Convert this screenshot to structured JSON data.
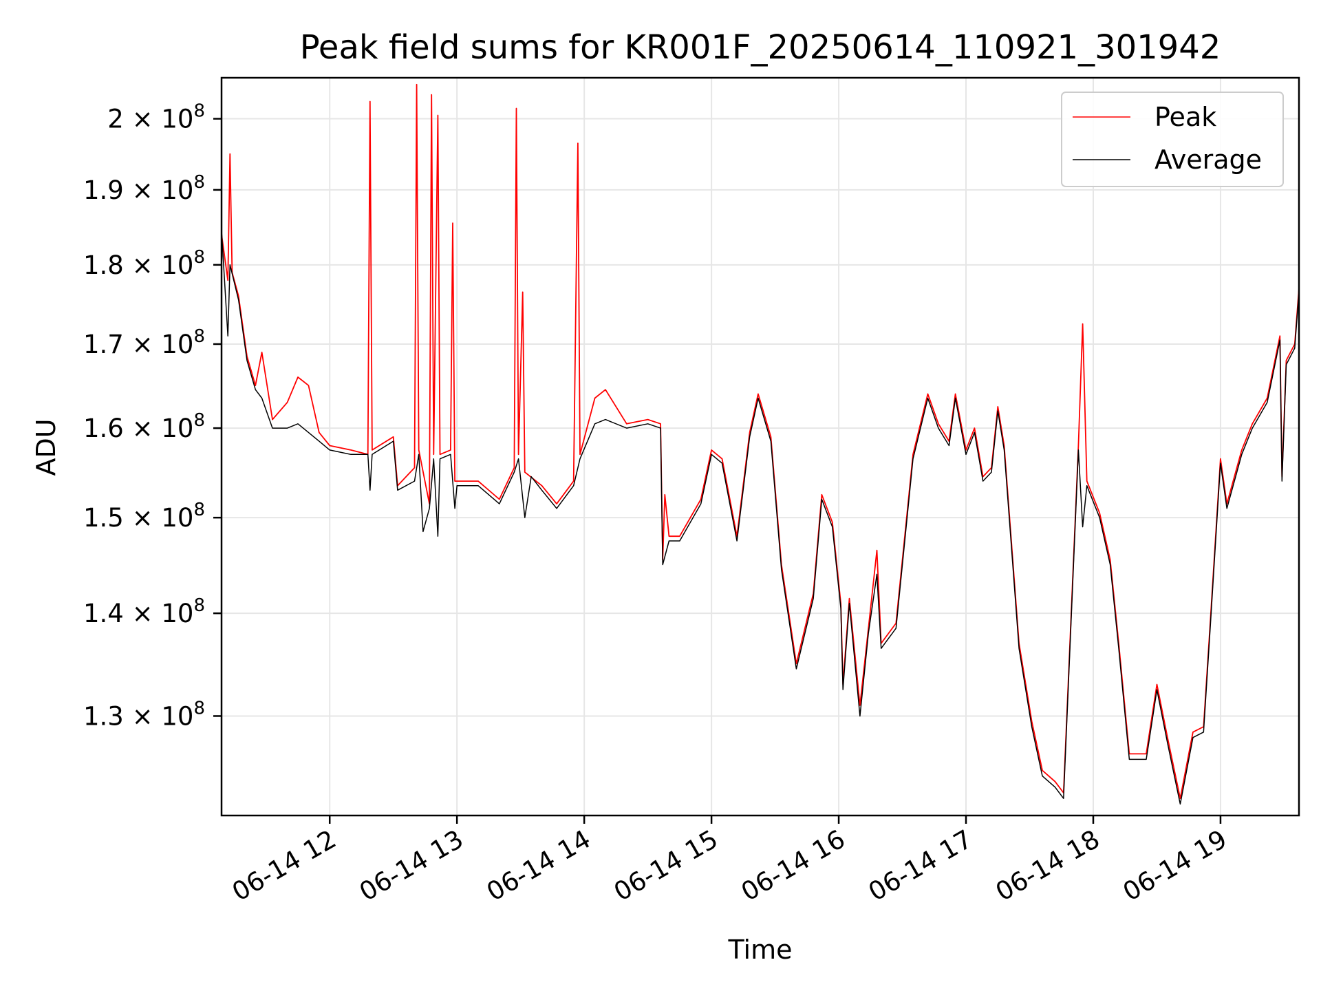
{
  "chart_data": {
    "type": "line",
    "title": "Peak field sums for KR001F_20250614_110921_301942",
    "xlabel": "Time",
    "ylabel": "ADU",
    "x_type": "datetime",
    "xlim": [
      "2025-06-14 11:09",
      "2025-06-14 19:37"
    ],
    "ylim": [
      121000000,
      206000000
    ],
    "y_scale": "log",
    "grid": true,
    "legend_position": "top-right",
    "x_ticks": [
      {
        "value": "2025-06-14 12:00",
        "label": "06-14 12"
      },
      {
        "value": "2025-06-14 13:00",
        "label": "06-14 13"
      },
      {
        "value": "2025-06-14 14:00",
        "label": "06-14 14"
      },
      {
        "value": "2025-06-14 15:00",
        "label": "06-14 15"
      },
      {
        "value": "2025-06-14 16:00",
        "label": "06-14 16"
      },
      {
        "value": "2025-06-14 17:00",
        "label": "06-14 17"
      },
      {
        "value": "2025-06-14 18:00",
        "label": "06-14 18"
      },
      {
        "value": "2025-06-14 19:00",
        "label": "06-14 19"
      }
    ],
    "y_ticks": [
      {
        "value": 130000000,
        "mantissa": "1.3",
        "exponent": "8"
      },
      {
        "value": 140000000,
        "mantissa": "1.4",
        "exponent": "8"
      },
      {
        "value": 150000000,
        "mantissa": "1.5",
        "exponent": "8"
      },
      {
        "value": 160000000,
        "mantissa": "1.6",
        "exponent": "8"
      },
      {
        "value": 170000000,
        "mantissa": "1.7",
        "exponent": "8"
      },
      {
        "value": 180000000,
        "mantissa": "1.8",
        "exponent": "8"
      },
      {
        "value": 190000000,
        "mantissa": "1.9",
        "exponent": "8"
      },
      {
        "value": 200000000,
        "mantissa": "2",
        "exponent": "8"
      }
    ],
    "series": [
      {
        "name": "Peak",
        "color": "#ff0000",
        "points": [
          [
            "2025-06-14 11:09",
            184000000
          ],
          [
            "2025-06-14 11:12",
            178000000
          ],
          [
            "2025-06-14 11:13",
            195000000
          ],
          [
            "2025-06-14 11:14",
            179000000
          ],
          [
            "2025-06-14 11:17",
            176000000
          ],
          [
            "2025-06-14 11:21",
            168500000
          ],
          [
            "2025-06-14 11:25",
            165000000
          ],
          [
            "2025-06-14 11:28",
            169000000
          ],
          [
            "2025-06-14 11:33",
            161000000
          ],
          [
            "2025-06-14 11:40",
            163000000
          ],
          [
            "2025-06-14 11:45",
            166000000
          ],
          [
            "2025-06-14 11:50",
            165000000
          ],
          [
            "2025-06-14 11:55",
            159500000
          ],
          [
            "2025-06-14 12:00",
            158000000
          ],
          [
            "2025-06-14 12:10",
            157500000
          ],
          [
            "2025-06-14 12:18",
            157000000
          ],
          [
            "2025-06-14 12:19",
            202500000
          ],
          [
            "2025-06-14 12:20",
            157500000
          ],
          [
            "2025-06-14 12:30",
            159000000
          ],
          [
            "2025-06-14 12:32",
            153500000
          ],
          [
            "2025-06-14 12:40",
            155500000
          ],
          [
            "2025-06-14 12:41",
            205000000
          ],
          [
            "2025-06-14 12:42",
            157500000
          ],
          [
            "2025-06-14 12:47",
            151500000
          ],
          [
            "2025-06-14 12:48",
            203500000
          ],
          [
            "2025-06-14 12:49",
            157000000
          ],
          [
            "2025-06-14 12:51",
            200500000
          ],
          [
            "2025-06-14 12:52",
            157000000
          ],
          [
            "2025-06-14 12:57",
            157500000
          ],
          [
            "2025-06-14 12:58",
            185500000
          ],
          [
            "2025-06-14 12:59",
            154000000
          ],
          [
            "2025-06-14 13:10",
            154000000
          ],
          [
            "2025-06-14 13:20",
            152000000
          ],
          [
            "2025-06-14 13:27",
            155500000
          ],
          [
            "2025-06-14 13:28",
            201500000
          ],
          [
            "2025-06-14 13:29",
            157000000
          ],
          [
            "2025-06-14 13:31",
            176500000
          ],
          [
            "2025-06-14 13:32",
            155000000
          ],
          [
            "2025-06-14 13:40",
            153500000
          ],
          [
            "2025-06-14 13:47",
            151500000
          ],
          [
            "2025-06-14 13:55",
            154000000
          ],
          [
            "2025-06-14 13:57",
            196500000
          ],
          [
            "2025-06-14 13:58",
            157000000
          ],
          [
            "2025-06-14 14:05",
            163500000
          ],
          [
            "2025-06-14 14:10",
            164500000
          ],
          [
            "2025-06-14 14:20",
            160500000
          ],
          [
            "2025-06-14 14:30",
            161000000
          ],
          [
            "2025-06-14 14:36",
            160500000
          ],
          [
            "2025-06-14 14:37",
            145500000
          ],
          [
            "2025-06-14 14:38",
            152500000
          ],
          [
            "2025-06-14 14:40",
            148000000
          ],
          [
            "2025-06-14 14:45",
            148000000
          ],
          [
            "2025-06-14 14:55",
            152000000
          ],
          [
            "2025-06-14 15:00",
            157500000
          ],
          [
            "2025-06-14 15:05",
            156500000
          ],
          [
            "2025-06-14 15:12",
            148000000
          ],
          [
            "2025-06-14 15:18",
            159500000
          ],
          [
            "2025-06-14 15:22",
            164000000
          ],
          [
            "2025-06-14 15:28",
            159000000
          ],
          [
            "2025-06-14 15:33",
            145000000
          ],
          [
            "2025-06-14 15:40",
            135000000
          ],
          [
            "2025-06-14 15:48",
            142000000
          ],
          [
            "2025-06-14 15:52",
            152500000
          ],
          [
            "2025-06-14 15:57",
            149500000
          ],
          [
            "2025-06-14 16:01",
            141000000
          ],
          [
            "2025-06-14 16:02",
            133000000
          ],
          [
            "2025-06-14 16:05",
            141500000
          ],
          [
            "2025-06-14 16:10",
            131000000
          ],
          [
            "2025-06-14 16:14",
            138500000
          ],
          [
            "2025-06-14 16:18",
            146500000
          ],
          [
            "2025-06-14 16:20",
            137000000
          ],
          [
            "2025-06-14 16:27",
            139000000
          ],
          [
            "2025-06-14 16:35",
            157000000
          ],
          [
            "2025-06-14 16:42",
            164000000
          ],
          [
            "2025-06-14 16:47",
            160500000
          ],
          [
            "2025-06-14 16:52",
            158500000
          ],
          [
            "2025-06-14 16:55",
            164000000
          ],
          [
            "2025-06-14 17:00",
            157500000
          ],
          [
            "2025-06-14 17:04",
            160000000
          ],
          [
            "2025-06-14 17:08",
            154500000
          ],
          [
            "2025-06-14 17:12",
            155500000
          ],
          [
            "2025-06-14 17:15",
            162500000
          ],
          [
            "2025-06-14 17:18",
            158000000
          ],
          [
            "2025-06-14 17:25",
            137000000
          ],
          [
            "2025-06-14 17:31",
            129500000
          ],
          [
            "2025-06-14 17:36",
            125000000
          ],
          [
            "2025-06-14 17:42",
            124000000
          ],
          [
            "2025-06-14 17:46",
            123000000
          ],
          [
            "2025-06-14 17:53",
            158000000
          ],
          [
            "2025-06-14 17:55",
            172500000
          ],
          [
            "2025-06-14 17:57",
            154000000
          ],
          [
            "2025-06-14 18:03",
            150500000
          ],
          [
            "2025-06-14 18:08",
            145500000
          ],
          [
            "2025-06-14 18:12",
            137000000
          ],
          [
            "2025-06-14 18:17",
            126500000
          ],
          [
            "2025-06-14 18:25",
            126500000
          ],
          [
            "2025-06-14 18:30",
            133000000
          ],
          [
            "2025-06-14 18:35",
            128000000
          ],
          [
            "2025-06-14 18:41",
            122500000
          ],
          [
            "2025-06-14 18:47",
            128500000
          ],
          [
            "2025-06-14 18:52",
            129000000
          ],
          [
            "2025-06-14 18:55",
            138500000
          ],
          [
            "2025-06-14 19:00",
            156500000
          ],
          [
            "2025-06-14 19:03",
            151500000
          ],
          [
            "2025-06-14 19:10",
            157500000
          ],
          [
            "2025-06-14 19:15",
            160500000
          ],
          [
            "2025-06-14 19:22",
            163500000
          ],
          [
            "2025-06-14 19:28",
            171000000
          ],
          [
            "2025-06-14 19:29",
            154500000
          ],
          [
            "2025-06-14 19:31",
            168000000
          ],
          [
            "2025-06-14 19:35",
            170000000
          ],
          [
            "2025-06-14 19:37",
            177000000
          ]
        ]
      },
      {
        "name": "Average",
        "color": "#000000",
        "points": [
          [
            "2025-06-14 11:09",
            184500000
          ],
          [
            "2025-06-14 11:12",
            171000000
          ],
          [
            "2025-06-14 11:13",
            180000000
          ],
          [
            "2025-06-14 11:17",
            175500000
          ],
          [
            "2025-06-14 11:21",
            168000000
          ],
          [
            "2025-06-14 11:25",
            164500000
          ],
          [
            "2025-06-14 11:28",
            163500000
          ],
          [
            "2025-06-14 11:33",
            160000000
          ],
          [
            "2025-06-14 11:40",
            160000000
          ],
          [
            "2025-06-14 11:45",
            160500000
          ],
          [
            "2025-06-14 11:50",
            159500000
          ],
          [
            "2025-06-14 11:55",
            158500000
          ],
          [
            "2025-06-14 12:00",
            157500000
          ],
          [
            "2025-06-14 12:10",
            157000000
          ],
          [
            "2025-06-14 12:18",
            157000000
          ],
          [
            "2025-06-14 12:19",
            153000000
          ],
          [
            "2025-06-14 12:20",
            157000000
          ],
          [
            "2025-06-14 12:30",
            158500000
          ],
          [
            "2025-06-14 12:32",
            153000000
          ],
          [
            "2025-06-14 12:40",
            154000000
          ],
          [
            "2025-06-14 12:42",
            157000000
          ],
          [
            "2025-06-14 12:44",
            148500000
          ],
          [
            "2025-06-14 12:47",
            151000000
          ],
          [
            "2025-06-14 12:49",
            156500000
          ],
          [
            "2025-06-14 12:51",
            148000000
          ],
          [
            "2025-06-14 12:52",
            156500000
          ],
          [
            "2025-06-14 12:57",
            157000000
          ],
          [
            "2025-06-14 12:59",
            151000000
          ],
          [
            "2025-06-14 13:00",
            153500000
          ],
          [
            "2025-06-14 13:10",
            153500000
          ],
          [
            "2025-06-14 13:20",
            151500000
          ],
          [
            "2025-06-14 13:27",
            155000000
          ],
          [
            "2025-06-14 13:29",
            156500000
          ],
          [
            "2025-06-14 13:32",
            150000000
          ],
          [
            "2025-06-14 13:35",
            154500000
          ],
          [
            "2025-06-14 13:40",
            153000000
          ],
          [
            "2025-06-14 13:47",
            151000000
          ],
          [
            "2025-06-14 13:55",
            153500000
          ],
          [
            "2025-06-14 13:58",
            156500000
          ],
          [
            "2025-06-14 14:05",
            160500000
          ],
          [
            "2025-06-14 14:10",
            161000000
          ],
          [
            "2025-06-14 14:20",
            160000000
          ],
          [
            "2025-06-14 14:30",
            160500000
          ],
          [
            "2025-06-14 14:36",
            160000000
          ],
          [
            "2025-06-14 14:37",
            145000000
          ],
          [
            "2025-06-14 14:40",
            147500000
          ],
          [
            "2025-06-14 14:45",
            147500000
          ],
          [
            "2025-06-14 14:55",
            151500000
          ],
          [
            "2025-06-14 15:00",
            157000000
          ],
          [
            "2025-06-14 15:05",
            156000000
          ],
          [
            "2025-06-14 15:12",
            147500000
          ],
          [
            "2025-06-14 15:18",
            159000000
          ],
          [
            "2025-06-14 15:22",
            163500000
          ],
          [
            "2025-06-14 15:28",
            158500000
          ],
          [
            "2025-06-14 15:33",
            144500000
          ],
          [
            "2025-06-14 15:40",
            134500000
          ],
          [
            "2025-06-14 15:48",
            141500000
          ],
          [
            "2025-06-14 15:52",
            152000000
          ],
          [
            "2025-06-14 15:57",
            149000000
          ],
          [
            "2025-06-14 16:01",
            140500000
          ],
          [
            "2025-06-14 16:02",
            132500000
          ],
          [
            "2025-06-14 16:05",
            141000000
          ],
          [
            "2025-06-14 16:10",
            130000000
          ],
          [
            "2025-06-14 16:14",
            138000000
          ],
          [
            "2025-06-14 16:18",
            144000000
          ],
          [
            "2025-06-14 16:20",
            136500000
          ],
          [
            "2025-06-14 16:27",
            138500000
          ],
          [
            "2025-06-14 16:35",
            156500000
          ],
          [
            "2025-06-14 16:42",
            163500000
          ],
          [
            "2025-06-14 16:47",
            160000000
          ],
          [
            "2025-06-14 16:52",
            158000000
          ],
          [
            "2025-06-14 16:55",
            163500000
          ],
          [
            "2025-06-14 17:00",
            157000000
          ],
          [
            "2025-06-14 17:04",
            159500000
          ],
          [
            "2025-06-14 17:08",
            154000000
          ],
          [
            "2025-06-14 17:12",
            155000000
          ],
          [
            "2025-06-14 17:15",
            162000000
          ],
          [
            "2025-06-14 17:18",
            157500000
          ],
          [
            "2025-06-14 17:25",
            136500000
          ],
          [
            "2025-06-14 17:31",
            129000000
          ],
          [
            "2025-06-14 17:36",
            124500000
          ],
          [
            "2025-06-14 17:42",
            123500000
          ],
          [
            "2025-06-14 17:46",
            122500000
          ],
          [
            "2025-06-14 17:53",
            157500000
          ],
          [
            "2025-06-14 17:55",
            149000000
          ],
          [
            "2025-06-14 17:57",
            153500000
          ],
          [
            "2025-06-14 18:03",
            150000000
          ],
          [
            "2025-06-14 18:08",
            145000000
          ],
          [
            "2025-06-14 18:12",
            136500000
          ],
          [
            "2025-06-14 18:17",
            126000000
          ],
          [
            "2025-06-14 18:25",
            126000000
          ],
          [
            "2025-06-14 18:30",
            132500000
          ],
          [
            "2025-06-14 18:35",
            127500000
          ],
          [
            "2025-06-14 18:41",
            122000000
          ],
          [
            "2025-06-14 18:47",
            128000000
          ],
          [
            "2025-06-14 18:52",
            128500000
          ],
          [
            "2025-06-14 18:55",
            138000000
          ],
          [
            "2025-06-14 19:00",
            156000000
          ],
          [
            "2025-06-14 19:03",
            151000000
          ],
          [
            "2025-06-14 19:10",
            157000000
          ],
          [
            "2025-06-14 19:15",
            160000000
          ],
          [
            "2025-06-14 19:22",
            163000000
          ],
          [
            "2025-06-14 19:28",
            170500000
          ],
          [
            "2025-06-14 19:29",
            154000000
          ],
          [
            "2025-06-14 19:31",
            167500000
          ],
          [
            "2025-06-14 19:35",
            169500000
          ],
          [
            "2025-06-14 19:37",
            176500000
          ]
        ]
      }
    ]
  }
}
